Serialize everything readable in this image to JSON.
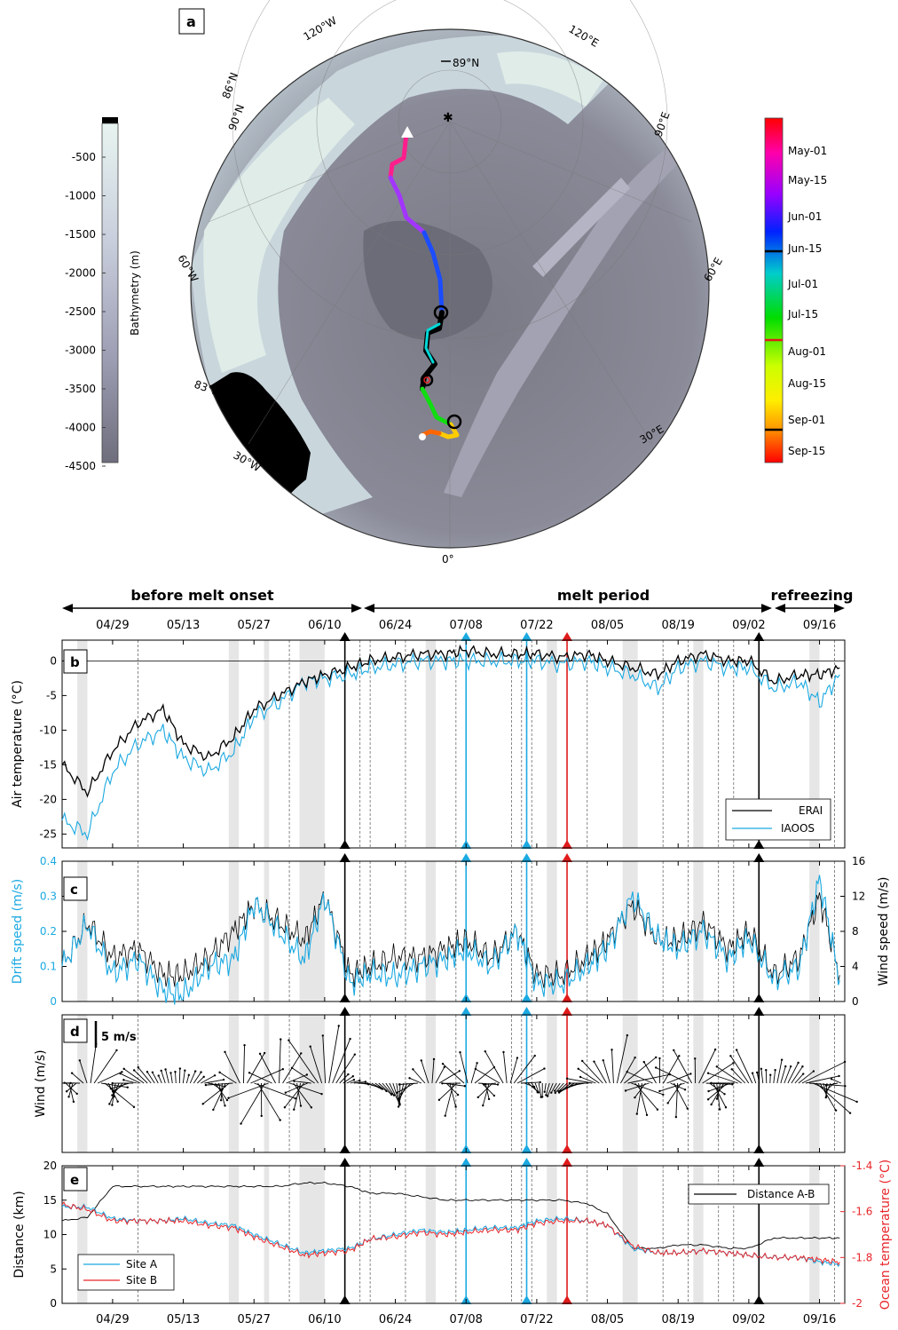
{
  "panel_a": {
    "label": "a",
    "lat_labels": [
      "89°N",
      "86°N",
      "90°N",
      "83°N"
    ],
    "lon_labels": [
      "120°W",
      "120°E",
      "90°E",
      "60°W",
      "60°E",
      "30°W",
      "30°E",
      "0°"
    ],
    "bathymetry_colorbar": {
      "label": "Bathymetry (m)",
      "ticks": [
        "-500",
        "-1000",
        "-1500",
        "-2000",
        "-2500",
        "-3000",
        "-3500",
        "-4000",
        "-4500"
      ]
    },
    "date_colorbar": {
      "ticks": [
        "May-01",
        "May-15",
        "Jun-01",
        "Jun-15",
        "Jul-01",
        "Jul-15",
        "Aug-01",
        "Aug-15",
        "Sep-01",
        "Sep-15"
      ]
    }
  },
  "periods": {
    "before": "before melt onset",
    "melt": "melt period",
    "refreeze": "refreezing"
  },
  "date_ticks": [
    "04/29",
    "05/13",
    "05/27",
    "06/10",
    "06/24",
    "07/08",
    "07/22",
    "08/05",
    "08/19",
    "09/02",
    "09/16"
  ],
  "panel_labels": {
    "b": "b",
    "c": "c",
    "d": "d",
    "e": "e"
  },
  "colors": {
    "erai": "#000000",
    "iaoos": "#1ba9e1",
    "site_b": "#e8262b",
    "marker_red": "#e01b1b",
    "marker_blue": "#1ba9e1",
    "shade": "#e6e6e6"
  },
  "chart_data": [
    {
      "type": "line",
      "panel": "b",
      "ylabel": "Air temperature (°C)",
      "ylim": [
        -27,
        3
      ],
      "yticks": [
        "0",
        "-5",
        "-10",
        "-15",
        "-20",
        "-25"
      ],
      "x_dates": [
        "04/19",
        "04/24",
        "04/29",
        "05/04",
        "05/09",
        "05/13",
        "05/18",
        "05/23",
        "05/27",
        "06/01",
        "06/06",
        "06/10",
        "06/15",
        "06/19",
        "06/24",
        "06/29",
        "07/04",
        "07/08",
        "07/13",
        "07/18",
        "07/22",
        "07/27",
        "08/01",
        "08/05",
        "08/10",
        "08/15",
        "08/19",
        "08/24",
        "08/29",
        "09/02",
        "09/07",
        "09/12",
        "09/16",
        "09/20"
      ],
      "series": [
        {
          "name": "ERAI",
          "values": [
            -15,
            -19,
            -13,
            -9,
            -7,
            -12,
            -14,
            -11,
            -7,
            -5,
            -3,
            -2,
            -1,
            0,
            0.5,
            1,
            1,
            1.5,
            1,
            1,
            1,
            0.5,
            1,
            0,
            -1,
            -2,
            0,
            1,
            0,
            0,
            -3,
            -2,
            -2,
            -1
          ]
        },
        {
          "name": "IAOOS",
          "values": [
            -23,
            -25,
            -16,
            -12,
            -10,
            -14,
            -16,
            -13,
            -8,
            -6,
            -3,
            -2.5,
            -2,
            -1,
            -0.5,
            0,
            0,
            0,
            0,
            0,
            0,
            -0.5,
            0,
            -1,
            -2,
            -4,
            -1,
            0,
            -1,
            -1,
            -4,
            -3,
            -6,
            -2
          ]
        }
      ]
    },
    {
      "type": "line",
      "panel": "c",
      "ylabel": "Drift speed (m/s)",
      "y2label": "Wind speed (m/s)",
      "ylim": [
        0,
        0.4
      ],
      "y2lim": [
        0,
        16
      ],
      "yticks": [
        "0",
        "0.1",
        "0.2",
        "0.3",
        "0.4"
      ],
      "y2ticks": [
        "0",
        "4",
        "8",
        "12",
        "16"
      ],
      "x_dates": [
        "04/19",
        "04/24",
        "04/29",
        "05/04",
        "05/09",
        "05/13",
        "05/18",
        "05/23",
        "05/27",
        "06/01",
        "06/06",
        "06/10",
        "06/15",
        "06/19",
        "06/24",
        "06/29",
        "07/04",
        "07/08",
        "07/13",
        "07/18",
        "07/22",
        "07/27",
        "08/01",
        "08/05",
        "08/10",
        "08/15",
        "08/19",
        "08/24",
        "08/29",
        "09/02",
        "09/07",
        "09/12",
        "09/16",
        "09/20"
      ],
      "series": [
        {
          "name": "Drift speed",
          "values": [
            0.1,
            0.22,
            0.08,
            0.12,
            0.03,
            0.02,
            0.1,
            0.12,
            0.28,
            0.2,
            0.12,
            0.3,
            0.05,
            0.08,
            0.07,
            0.1,
            0.12,
            0.15,
            0.1,
            0.2,
            0.05,
            0.05,
            0.1,
            0.15,
            0.3,
            0.18,
            0.15,
            0.2,
            0.12,
            0.18,
            0.06,
            0.1,
            0.35,
            0.06
          ]
        },
        {
          "name": "Wind speed",
          "values": [
            4,
            9,
            5,
            6,
            3,
            3,
            5,
            8,
            11,
            9,
            7,
            12,
            3,
            4,
            5,
            5,
            6,
            7,
            5,
            8,
            3,
            3,
            5,
            7,
            11,
            7,
            7,
            9,
            6,
            8,
            3,
            5,
            12,
            3
          ]
        }
      ]
    },
    {
      "type": "line",
      "panel": "e",
      "ylabel": "Distance (km)",
      "y2label": "Ocean temperature (°C)",
      "ylim": [
        0,
        20
      ],
      "y2lim": [
        -2,
        -1.4
      ],
      "yticks": [
        "0",
        "5",
        "10",
        "15",
        "20"
      ],
      "y2ticks": [
        "-2",
        "-1.8",
        "-1.6",
        "-1.4"
      ],
      "legend": [
        "Distance A-B",
        "Site A",
        "Site B"
      ],
      "x_dates": [
        "04/19",
        "04/24",
        "04/29",
        "05/04",
        "05/09",
        "05/13",
        "05/18",
        "05/23",
        "05/27",
        "06/01",
        "06/06",
        "06/10",
        "06/15",
        "06/19",
        "06/24",
        "06/29",
        "07/04",
        "07/08",
        "07/13",
        "07/18",
        "07/22",
        "07/27",
        "08/01",
        "08/05",
        "08/10",
        "08/15",
        "08/19",
        "08/24",
        "08/29",
        "09/02",
        "09/07",
        "09/12",
        "09/16",
        "09/20"
      ],
      "series": [
        {
          "name": "Distance A-B",
          "values": [
            12,
            12.5,
            17,
            17,
            17,
            17,
            17,
            17,
            17,
            17,
            17.5,
            17.5,
            17,
            16,
            16,
            15.5,
            15,
            15,
            15,
            15,
            15,
            15,
            14.5,
            13,
            8,
            8,
            8.5,
            8.5,
            8,
            8,
            9.5,
            9.5,
            9.5,
            9.5
          ]
        },
        {
          "name": "Site A",
          "values": [
            -1.58,
            -1.58,
            -1.63,
            -1.64,
            -1.64,
            -1.63,
            -1.65,
            -1.66,
            -1.7,
            -1.74,
            -1.78,
            -1.77,
            -1.76,
            -1.72,
            -1.7,
            -1.68,
            -1.69,
            -1.68,
            -1.67,
            -1.67,
            -1.64,
            -1.63,
            -1.64,
            -1.66,
            -1.76,
            -1.78,
            -1.78,
            -1.77,
            -1.78,
            -1.79,
            -1.8,
            -1.8,
            -1.82,
            -1.83
          ]
        },
        {
          "name": "Site B",
          "values": [
            -1.57,
            -1.59,
            -1.64,
            -1.64,
            -1.64,
            -1.64,
            -1.66,
            -1.67,
            -1.71,
            -1.75,
            -1.79,
            -1.78,
            -1.77,
            -1.72,
            -1.71,
            -1.69,
            -1.7,
            -1.69,
            -1.68,
            -1.68,
            -1.65,
            -1.64,
            -1.64,
            -1.66,
            -1.75,
            -1.78,
            -1.78,
            -1.77,
            -1.78,
            -1.79,
            -1.8,
            -1.8,
            -1.81,
            -1.82
          ]
        }
      ]
    },
    {
      "type": "line",
      "panel": "d",
      "ylabel": "Wind (m/s)",
      "scale_label": "5 m/s"
    }
  ]
}
